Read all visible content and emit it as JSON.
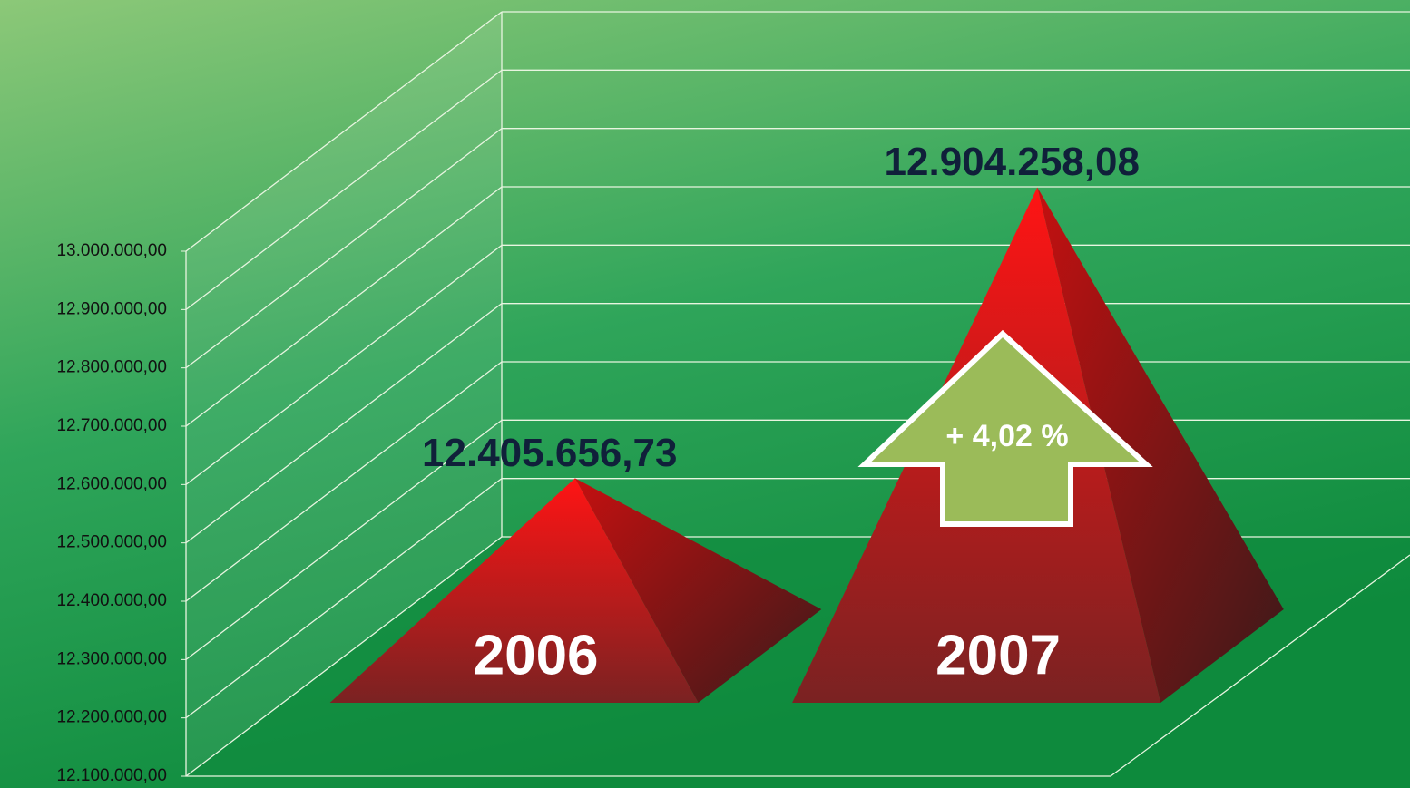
{
  "chart_data": {
    "type": "pyramid",
    "categories": [
      "2006",
      "2007"
    ],
    "values": [
      12405656.73,
      12904258.08
    ],
    "value_labels": [
      "12.405.656,73",
      "12.904.258,08"
    ],
    "color": "#ff1a1a",
    "ylim": [
      12100000,
      13000000
    ],
    "yticks": [
      {
        "value": 12100000,
        "label": "12.100.000,00"
      },
      {
        "value": 12200000,
        "label": "12.200.000,00"
      },
      {
        "value": 12300000,
        "label": "12.300.000,00"
      },
      {
        "value": 12400000,
        "label": "12.400.000,00"
      },
      {
        "value": 12500000,
        "label": "12.500.000,00"
      },
      {
        "value": 12600000,
        "label": "12.600.000,00"
      },
      {
        "value": 12700000,
        "label": "12.700.000,00"
      },
      {
        "value": 12800000,
        "label": "12.800.000,00"
      },
      {
        "value": 12900000,
        "label": "12.900.000,00"
      },
      {
        "value": 13000000,
        "label": "13.000.000,00"
      }
    ],
    "grid": true,
    "annotation": "+ 4,02 %"
  }
}
